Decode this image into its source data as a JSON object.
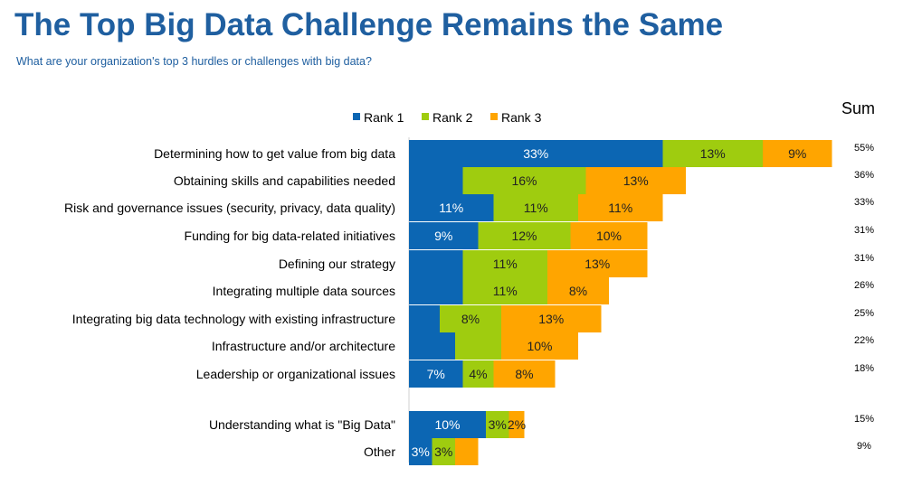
{
  "header": {
    "title": "The Top Big Data Challenge Remains the Same",
    "subtitle": "What are your organization's top 3 hurdles or challenges with big data?"
  },
  "chart_data": {
    "type": "bar",
    "orientation": "horizontal",
    "stacked": true,
    "sum_label": "Sum",
    "legend_position": "top",
    "categories": [
      "Determining how to get value from big data",
      "Obtaining skills and capabilities needed",
      "Risk and governance issues (security, privacy, data quality)",
      "Funding for big data-related initiatives",
      "Defining our strategy",
      "Integrating multiple data sources",
      "Integrating big data technology with existing infrastructure",
      "Infrastructure and/or architecture",
      "Leadership or organizational issues",
      "Understanding what is \"Big Data\"",
      "Other"
    ],
    "series": [
      {
        "name": "Rank 1",
        "color": "#0c66b3",
        "values": [
          33,
          7,
          11,
          9,
          7,
          7,
          4,
          6,
          7,
          10,
          3
        ],
        "labels": [
          "33%",
          "",
          "11%",
          "9%",
          "",
          "",
          "",
          "",
          "7%",
          "10%",
          "3%"
        ]
      },
      {
        "name": "Rank 2",
        "color": "#9fcc0f",
        "values": [
          13,
          16,
          11,
          12,
          11,
          11,
          8,
          6,
          4,
          3,
          3
        ],
        "labels": [
          "13%",
          "16%",
          "11%",
          "12%",
          "11%",
          "11%",
          "8%",
          "",
          "4%",
          "3%",
          "3%"
        ]
      },
      {
        "name": "Rank 3",
        "color": "#ffa500",
        "values": [
          9,
          13,
          11,
          10,
          13,
          8,
          13,
          10,
          8,
          2,
          3
        ],
        "labels": [
          "9%",
          "13%",
          "11%",
          "10%",
          "13%",
          "8%",
          "13%",
          "10%",
          "8%",
          "2%",
          ""
        ]
      }
    ],
    "sums": [
      "55%",
      "36%",
      "33%",
      "31%",
      "31%",
      "26%",
      "25%",
      "22%",
      "18%",
      "15%",
      "9%"
    ]
  }
}
